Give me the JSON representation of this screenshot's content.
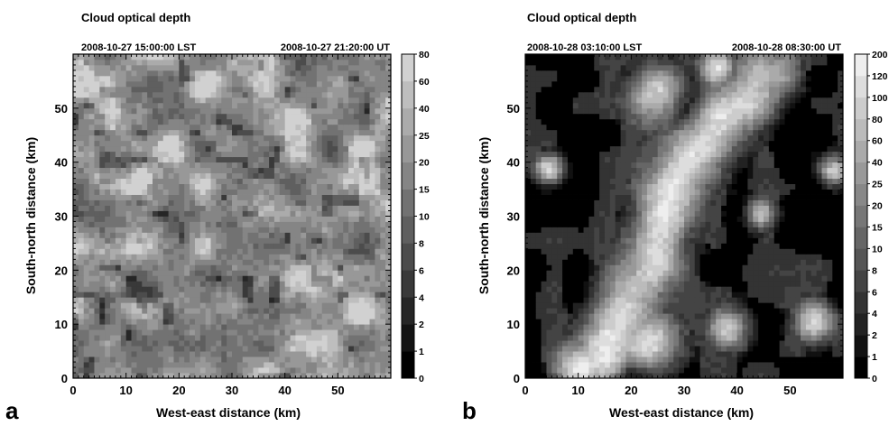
{
  "chart_data": [
    {
      "type": "heatmap",
      "panel_letter": "a",
      "title": "Cloud optical depth",
      "time_local": "2008-10-27 15:00:00 LST",
      "time_ut": "2008-10-27 21:20:00 UT",
      "xlabel": "West-east distance (km)",
      "ylabel": "South-north distance (km)",
      "xlim": [
        0,
        60
      ],
      "ylim": [
        0,
        60
      ],
      "xticks": [
        "0",
        "10",
        "20",
        "30",
        "40",
        "50"
      ],
      "yticks": [
        "0",
        "10",
        "20",
        "30",
        "40",
        "50"
      ],
      "colorbar_ticks": [
        "0",
        "1",
        "2",
        "4",
        "6",
        "8",
        "10",
        "15",
        "20",
        "25",
        "40",
        "60",
        "80"
      ],
      "colorbar_colors": [
        "#000000",
        "#131313",
        "#262626",
        "#393939",
        "#4c4c4c",
        "#5f5f5f",
        "#727272",
        "#858585",
        "#989898",
        "#ababab",
        "#bebebe",
        "#d1d1d1"
      ],
      "field_description": "broken cellular cloud field, mostly 15-25 with scattered cells of 40-60"
    },
    {
      "type": "heatmap",
      "panel_letter": "b",
      "title": "Cloud optical depth",
      "time_local": "2008-10-28 03:10:00 LST",
      "time_ut": "2008-10-28 08:30:00 UT",
      "xlabel": "West-east distance (km)",
      "ylabel": "South-north distance (km)",
      "xlim": [
        0,
        60
      ],
      "ylim": [
        0,
        60
      ],
      "xticks": [
        "0",
        "10",
        "20",
        "30",
        "40",
        "50"
      ],
      "yticks": [
        "0",
        "10",
        "20",
        "30",
        "40",
        "50"
      ],
      "colorbar_ticks": [
        "0",
        "1",
        "2",
        "4",
        "6",
        "8",
        "10",
        "15",
        "20",
        "25",
        "40",
        "60",
        "80",
        "100",
        "120",
        "200"
      ],
      "colorbar_colors": [
        "#000000",
        "#111111",
        "#222222",
        "#333333",
        "#444444",
        "#555555",
        "#666666",
        "#777777",
        "#888888",
        "#999999",
        "#aaaaaa",
        "#bbbbbb",
        "#cccccc",
        "#dddddd",
        "#eeeeee"
      ],
      "field_description": "mostly clear (0-1) with a bright convective band (40-120) from southwest to northeast"
    }
  ]
}
